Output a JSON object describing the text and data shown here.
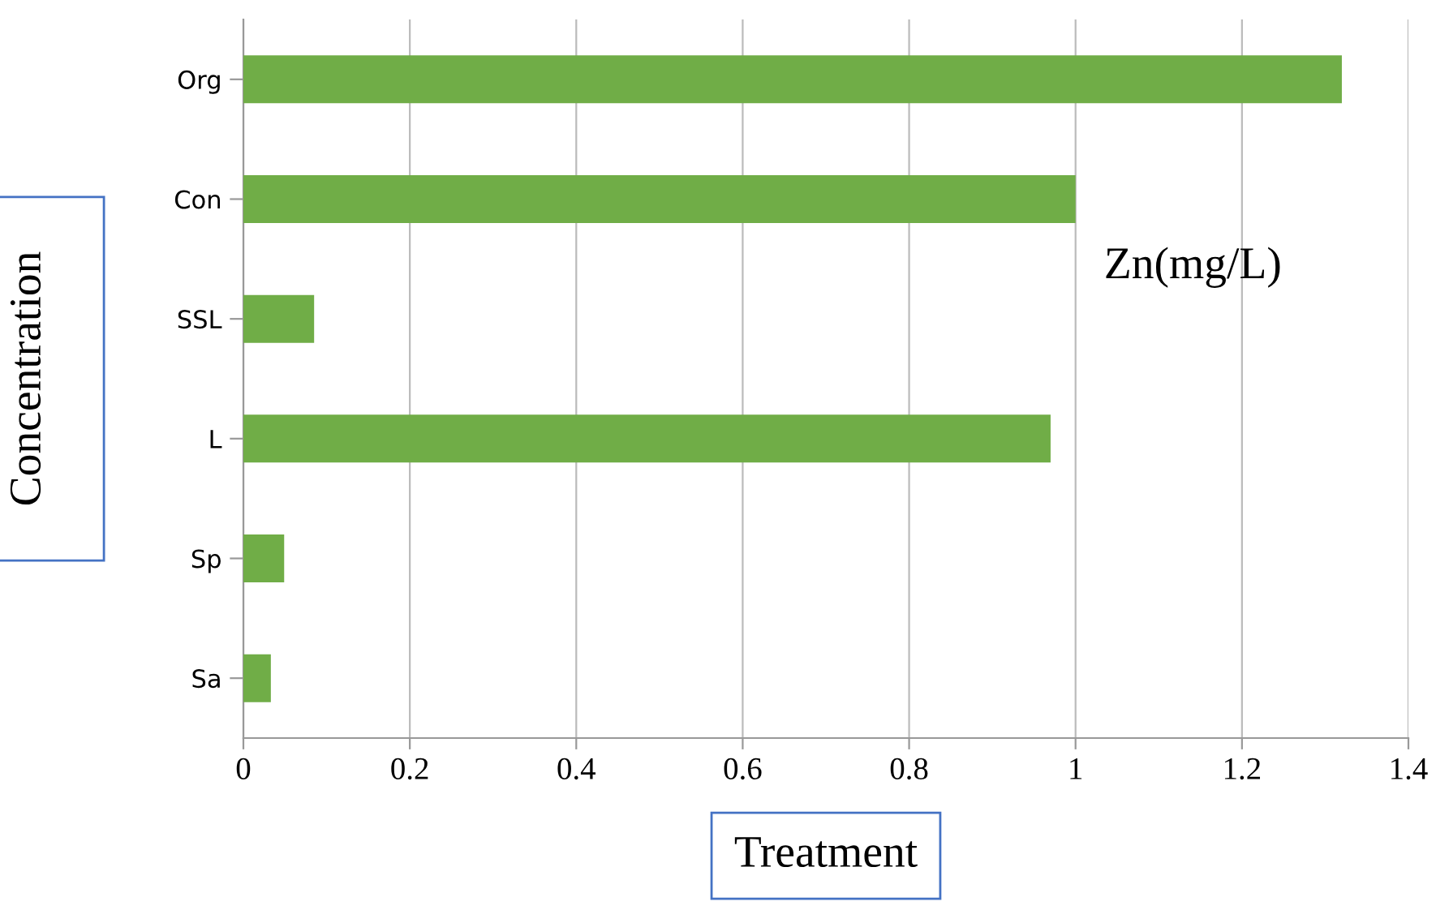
{
  "chart_data": {
    "type": "bar",
    "orientation": "horizontal",
    "categories": [
      "Org",
      "Con",
      "SSL",
      "L",
      "Sp",
      "Sa"
    ],
    "values": [
      1.32,
      1.0,
      0.085,
      0.97,
      0.049,
      0.033
    ],
    "color": "#70ad47",
    "xlim": [
      0,
      1.4
    ],
    "xticks": [
      0,
      0.2,
      0.4,
      0.6,
      0.8,
      1,
      1.2,
      1.4
    ],
    "grid": "x",
    "xlabel": "Treatment",
    "ylabel": "Concentration",
    "annotations": [
      "Zn(mg/L)"
    ]
  }
}
